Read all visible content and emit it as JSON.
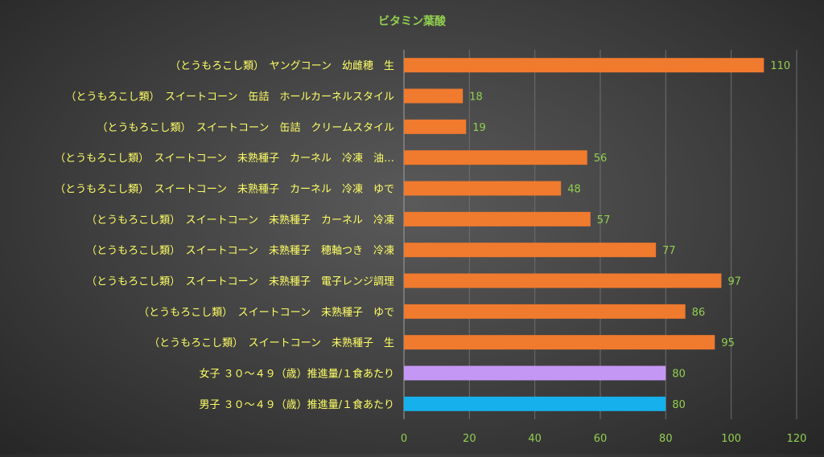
{
  "chart_data": {
    "type": "bar",
    "orientation": "horizontal",
    "title": "ビタミン葉酸",
    "xlabel": "",
    "ylabel": "",
    "xlim": [
      0,
      120
    ],
    "x_ticks": [
      0,
      20,
      40,
      60,
      80,
      100,
      120
    ],
    "grid": true,
    "legend": "none",
    "categories": [
      "（とうもろこし類）　ヤングコーン　幼雌穂　生",
      "（とうもろこし類）　スイートコーン　缶詰　ホールカーネルスタイル",
      "（とうもろこし類）　スイートコーン　缶詰　クリームスタイル",
      "（とうもろこし類）　スイートコーン　未熟種子　カーネル　冷凍　油…",
      "（とうもろこし類）　スイートコーン　未熟種子　カーネル　冷凍　ゆで",
      "（とうもろこし類）　スイートコーン　未熟種子　カーネル　冷凍",
      "（とうもろこし類）　スイートコーン　未熟種子　穂軸つき　冷凍",
      "（とうもろこし類）　スイートコーン　未熟種子　電子レンジ調理",
      "（とうもろこし類）　スイートコーン　未熟種子　ゆで",
      "（とうもろこし類）　スイートコーン　未熟種子　生",
      "女子 ３０～４９（歳）推進量/１食あたり",
      "男子 ３０～４９（歳）推進量/１食あたり"
    ],
    "values": [
      110,
      18,
      19,
      56,
      48,
      57,
      77,
      97,
      86,
      95,
      80,
      80
    ],
    "data_labels": [
      "110",
      "18",
      "19",
      "56",
      "48",
      "57",
      "77",
      "97",
      "86",
      "95",
      "80",
      "80"
    ],
    "bar_colors": [
      "#f07a2e",
      "#f07a2e",
      "#f07a2e",
      "#f07a2e",
      "#f07a2e",
      "#f07a2e",
      "#f07a2e",
      "#f07a2e",
      "#f07a2e",
      "#f07a2e",
      "#c597f5",
      "#16b0ec"
    ],
    "colors": {
      "title": "#92d050",
      "category_labels": "#ffff66",
      "data_labels": "#92d050",
      "tick_labels": "#92d050",
      "gridlines": "#6e6e6e",
      "axis_line": "#a0a0a0"
    }
  }
}
